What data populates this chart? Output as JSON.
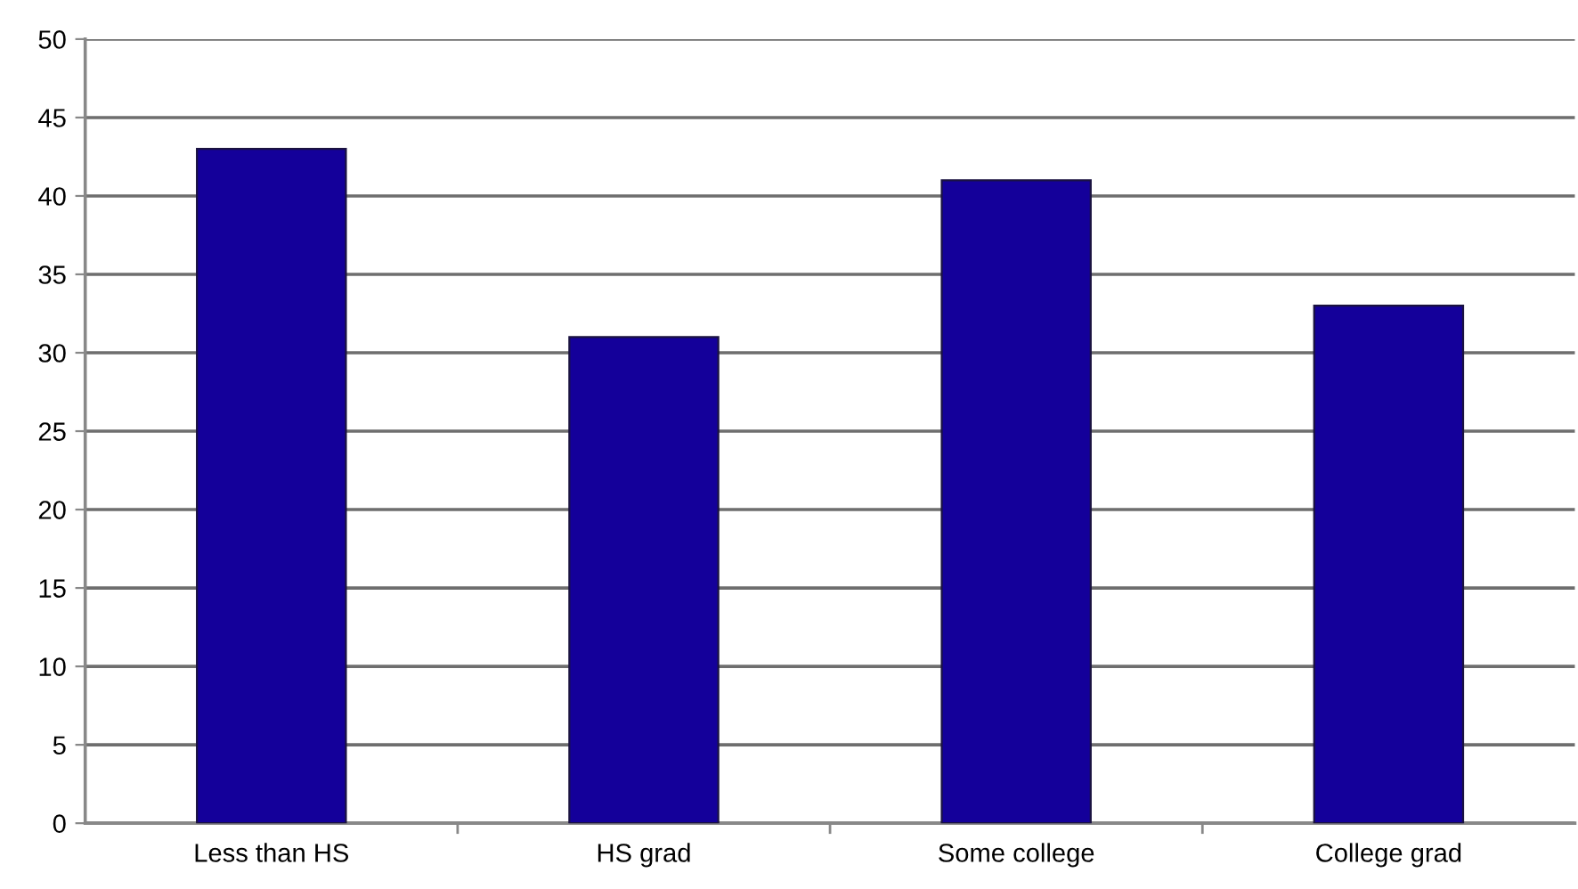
{
  "chart_data": {
    "type": "bar",
    "categories": [
      "Less than HS",
      "HS grad",
      "Some college",
      "College grad"
    ],
    "values": [
      43,
      31,
      41,
      33
    ],
    "color": "#14009a",
    "ylim": [
      0,
      50
    ],
    "yticks": [
      0,
      5,
      10,
      15,
      20,
      25,
      30,
      35,
      40,
      45,
      50
    ],
    "grid": "y"
  }
}
